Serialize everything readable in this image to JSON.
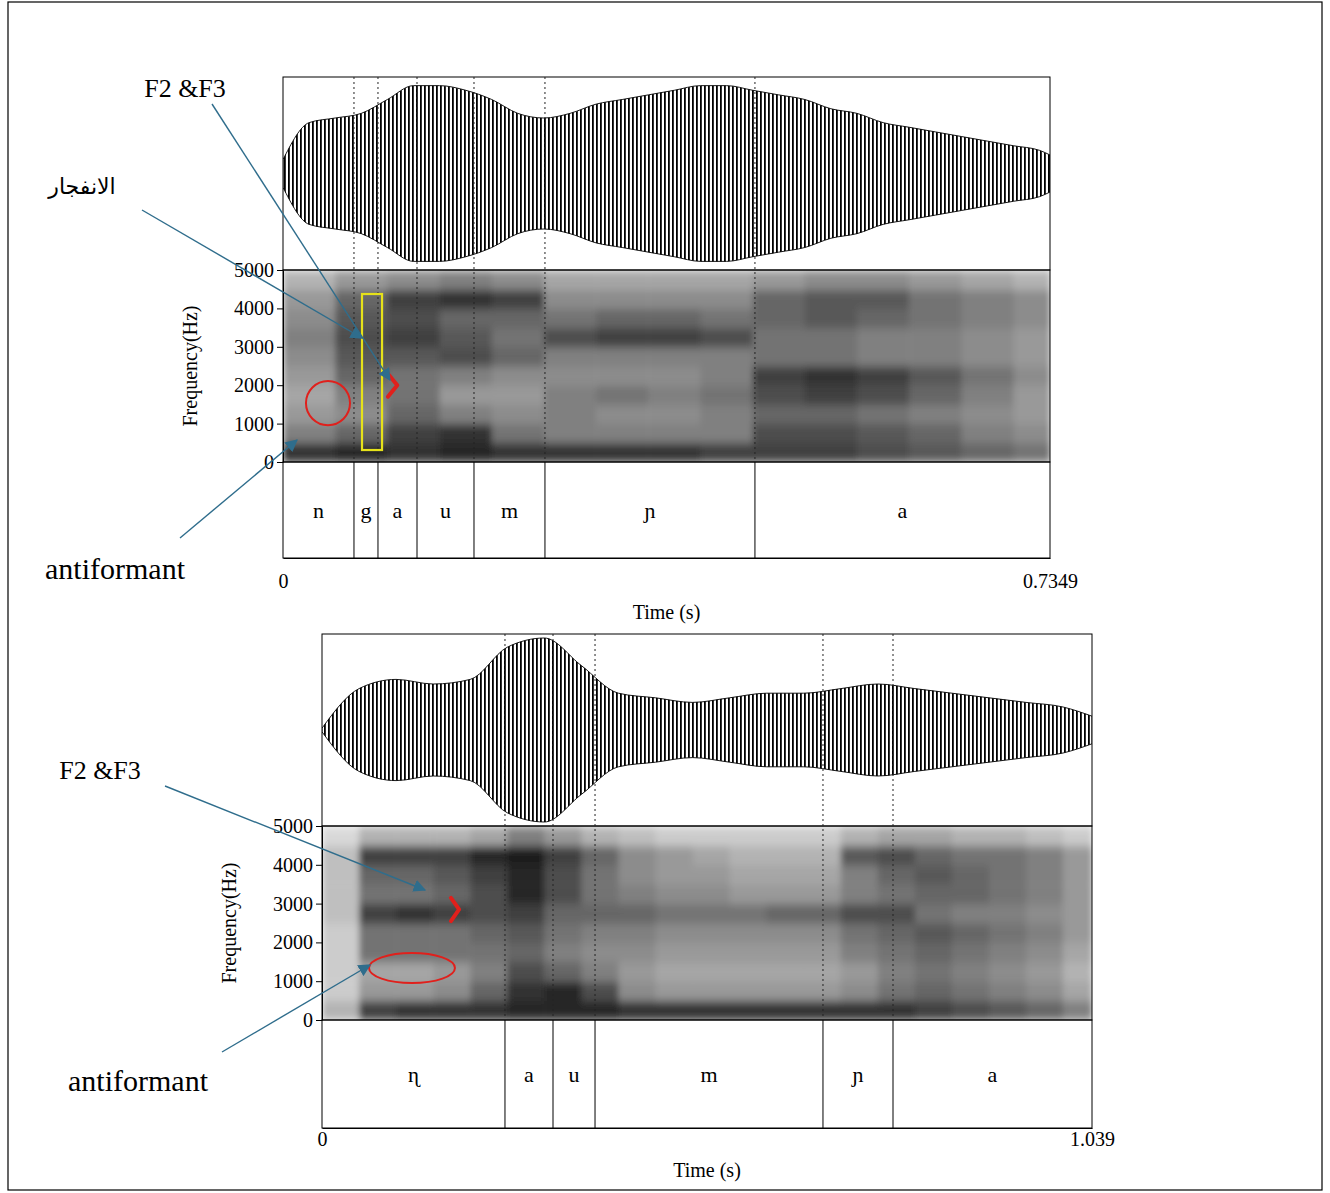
{
  "chart_data": [
    {
      "type": "spectrogram",
      "xlabel": "Time (s)",
      "ylabel": "Frequency(Hz)",
      "xlim": [
        0,
        0.7349
      ],
      "xticks": [
        0,
        0.7349
      ],
      "ylim": [
        0,
        5000
      ],
      "yticks": [
        0,
        1000,
        2000,
        3000,
        4000,
        5000
      ],
      "waveform": {
        "ylim": [
          -1,
          1
        ],
        "x": [
          0,
          0.025,
          0.05,
          0.075,
          0.1,
          0.125,
          0.15,
          0.175,
          0.2,
          0.225,
          0.25,
          0.275,
          0.3,
          0.325,
          0.35,
          0.375,
          0.4,
          0.425,
          0.45,
          0.475,
          0.5,
          0.525,
          0.55,
          0.575,
          0.6,
          0.625,
          0.65,
          0.675,
          0.7,
          0.725,
          0.7349
        ],
        "values": [
          0.15,
          0.55,
          0.6,
          0.65,
          0.8,
          0.95,
          0.95,
          0.9,
          0.8,
          0.65,
          0.6,
          0.65,
          0.75,
          0.8,
          0.85,
          0.9,
          0.95,
          0.95,
          0.9,
          0.85,
          0.8,
          0.7,
          0.65,
          0.55,
          0.5,
          0.45,
          0.4,
          0.35,
          0.3,
          0.25,
          0.2
        ]
      },
      "spectrogram": {
        "range": [
          0,
          1
        ],
        "time_edges": [
          0,
          0.05,
          0.1,
          0.15,
          0.2,
          0.25,
          0.3,
          0.35,
          0.4,
          0.45,
          0.5,
          0.55,
          0.6,
          0.65,
          0.7,
          0.7349
        ],
        "freq_edges": [
          0,
          500,
          1000,
          1500,
          2000,
          2500,
          3000,
          3500,
          4000,
          4500,
          5000
        ],
        "cells": [
          [
            0.8,
            0.85,
            0.8,
            0.85,
            0.8,
            0.8,
            0.8,
            0.8,
            0.75,
            0.75,
            0.75,
            0.7,
            0.65,
            0.6,
            0.55
          ],
          [
            0.5,
            0.6,
            0.75,
            0.8,
            0.55,
            0.5,
            0.5,
            0.5,
            0.5,
            0.7,
            0.7,
            0.65,
            0.6,
            0.5,
            0.45
          ],
          [
            0.4,
            0.45,
            0.6,
            0.5,
            0.45,
            0.5,
            0.45,
            0.45,
            0.5,
            0.6,
            0.6,
            0.55,
            0.5,
            0.45,
            0.4
          ],
          [
            0.35,
            0.5,
            0.55,
            0.4,
            0.4,
            0.5,
            0.55,
            0.5,
            0.55,
            0.7,
            0.75,
            0.7,
            0.6,
            0.5,
            0.4
          ],
          [
            0.4,
            0.6,
            0.55,
            0.5,
            0.45,
            0.45,
            0.45,
            0.45,
            0.5,
            0.75,
            0.8,
            0.75,
            0.65,
            0.55,
            0.45
          ],
          [
            0.45,
            0.65,
            0.65,
            0.7,
            0.6,
            0.5,
            0.5,
            0.5,
            0.5,
            0.55,
            0.55,
            0.5,
            0.5,
            0.45,
            0.4
          ],
          [
            0.5,
            0.7,
            0.75,
            0.65,
            0.55,
            0.7,
            0.75,
            0.75,
            0.7,
            0.55,
            0.55,
            0.5,
            0.5,
            0.45,
            0.4
          ],
          [
            0.45,
            0.65,
            0.7,
            0.6,
            0.6,
            0.55,
            0.6,
            0.6,
            0.55,
            0.6,
            0.65,
            0.6,
            0.55,
            0.5,
            0.45
          ],
          [
            0.4,
            0.6,
            0.75,
            0.8,
            0.75,
            0.45,
            0.45,
            0.45,
            0.45,
            0.6,
            0.65,
            0.65,
            0.55,
            0.5,
            0.45
          ],
          [
            0.3,
            0.4,
            0.45,
            0.5,
            0.45,
            0.35,
            0.35,
            0.35,
            0.35,
            0.4,
            0.45,
            0.45,
            0.4,
            0.35,
            0.3
          ]
        ]
      },
      "segments": {
        "boundaries": [
          0.068,
          0.091,
          0.1284,
          0.183,
          0.251,
          0.4522
        ],
        "labels": [
          "n",
          "g",
          "a",
          "u",
          "m",
          "ɲ",
          "a"
        ]
      },
      "highlights": [
        {
          "shape": "rect",
          "color": "#e6e21a",
          "time": [
            0.0757,
            0.0949
          ],
          "freq": [
            312,
            4375
          ]
        },
        {
          "shape": "ellipse",
          "color": "#e0201c",
          "time": [
            0.022,
            0.0642
          ],
          "freq": [
            960,
            2110
          ]
        },
        {
          "shape": "chevron",
          "color": "#e0201c",
          "time": [
            0.1005,
            0.1095
          ],
          "freq": [
            1700,
            2300
          ]
        }
      ],
      "annotations": [
        {
          "text": "F2 &F3",
          "time": 0.1025,
          "freq": 2135
        },
        {
          "text": "الانفجار",
          "time": 0.0757,
          "freq": 3229
        },
        {
          "text": "antiformant",
          "time": 0.0134,
          "freq": 573
        }
      ]
    },
    {
      "type": "spectrogram",
      "xlabel": "Time (s)",
      "ylabel": "Frequency(Hz)",
      "xlim": [
        0,
        1.039
      ],
      "xticks": [
        0,
        1.039
      ],
      "ylim": [
        0,
        5000
      ],
      "yticks": [
        0,
        1000,
        2000,
        3000,
        4000,
        5000
      ],
      "waveform": {
        "ylim": [
          -1,
          1
        ],
        "x": [
          0,
          0.05,
          0.1,
          0.15,
          0.2,
          0.25,
          0.3,
          0.35,
          0.4,
          0.45,
          0.5,
          0.55,
          0.6,
          0.65,
          0.7,
          0.75,
          0.8,
          0.85,
          0.9,
          0.95,
          1.0,
          1.039
        ],
        "values": [
          0.02,
          0.45,
          0.55,
          0.5,
          0.55,
          0.9,
          1.0,
          0.7,
          0.4,
          0.35,
          0.3,
          0.35,
          0.4,
          0.4,
          0.45,
          0.5,
          0.45,
          0.4,
          0.35,
          0.3,
          0.25,
          0.15
        ]
      },
      "spectrogram": {
        "range": [
          0,
          1
        ],
        "time_edges": [
          0,
          0.05,
          0.1,
          0.15,
          0.2,
          0.25,
          0.3,
          0.35,
          0.4,
          0.45,
          0.5,
          0.55,
          0.6,
          0.65,
          0.7,
          0.75,
          0.8,
          0.85,
          0.9,
          0.95,
          1.0,
          1.039
        ],
        "freq_edges": [
          0,
          500,
          1000,
          1500,
          2000,
          2500,
          3000,
          3500,
          4000,
          4500,
          5000
        ],
        "cells": [
          [
            0.3,
            0.75,
            0.8,
            0.8,
            0.8,
            0.85,
            0.85,
            0.85,
            0.8,
            0.8,
            0.8,
            0.8,
            0.8,
            0.8,
            0.8,
            0.8,
            0.75,
            0.7,
            0.65,
            0.6,
            0.5
          ],
          [
            0.2,
            0.4,
            0.4,
            0.45,
            0.6,
            0.8,
            0.85,
            0.7,
            0.45,
            0.4,
            0.4,
            0.4,
            0.4,
            0.4,
            0.45,
            0.55,
            0.6,
            0.55,
            0.5,
            0.45,
            0.35
          ],
          [
            0.2,
            0.35,
            0.35,
            0.4,
            0.5,
            0.7,
            0.6,
            0.5,
            0.4,
            0.35,
            0.35,
            0.35,
            0.35,
            0.35,
            0.4,
            0.5,
            0.55,
            0.5,
            0.45,
            0.4,
            0.3
          ],
          [
            0.2,
            0.55,
            0.55,
            0.55,
            0.55,
            0.6,
            0.5,
            0.45,
            0.45,
            0.4,
            0.4,
            0.4,
            0.4,
            0.4,
            0.5,
            0.55,
            0.6,
            0.55,
            0.5,
            0.45,
            0.35
          ],
          [
            0.2,
            0.55,
            0.55,
            0.55,
            0.6,
            0.65,
            0.55,
            0.5,
            0.5,
            0.45,
            0.45,
            0.45,
            0.45,
            0.45,
            0.55,
            0.6,
            0.65,
            0.6,
            0.55,
            0.5,
            0.4
          ],
          [
            0.25,
            0.75,
            0.8,
            0.75,
            0.7,
            0.75,
            0.6,
            0.6,
            0.6,
            0.55,
            0.55,
            0.55,
            0.6,
            0.6,
            0.7,
            0.7,
            0.55,
            0.5,
            0.5,
            0.45,
            0.4
          ],
          [
            0.25,
            0.55,
            0.55,
            0.6,
            0.7,
            0.85,
            0.7,
            0.55,
            0.5,
            0.45,
            0.45,
            0.4,
            0.4,
            0.4,
            0.5,
            0.55,
            0.6,
            0.6,
            0.55,
            0.5,
            0.4
          ],
          [
            0.25,
            0.6,
            0.6,
            0.65,
            0.75,
            0.85,
            0.7,
            0.55,
            0.45,
            0.4,
            0.4,
            0.35,
            0.35,
            0.35,
            0.5,
            0.6,
            0.65,
            0.6,
            0.55,
            0.5,
            0.4
          ],
          [
            0.25,
            0.75,
            0.75,
            0.75,
            0.85,
            0.9,
            0.75,
            0.6,
            0.45,
            0.4,
            0.35,
            0.3,
            0.3,
            0.3,
            0.65,
            0.7,
            0.6,
            0.55,
            0.55,
            0.5,
            0.4
          ],
          [
            0.15,
            0.3,
            0.3,
            0.3,
            0.35,
            0.5,
            0.4,
            0.3,
            0.25,
            0.2,
            0.2,
            0.2,
            0.2,
            0.2,
            0.3,
            0.35,
            0.35,
            0.3,
            0.3,
            0.25,
            0.2
          ]
        ]
      },
      "segments": {
        "boundaries": [
          0.2469,
          0.3117,
          0.3684,
          0.676,
          0.7705
        ],
        "labels": [
          "ɳ",
          "a",
          "u",
          "m",
          "ɲ",
          "a"
        ]
      },
      "highlights": [
        {
          "shape": "ellipse",
          "color": "#e0201c",
          "time": [
            0.0634,
            0.1794
          ],
          "freq": [
            953,
            1727
          ]
        },
        {
          "shape": "chevron",
          "color": "#e0201c",
          "time": [
            0.174,
            0.185
          ],
          "freq": [
            2550,
            3150
          ]
        }
      ],
      "annotations": [
        {
          "text": "F2 &F3",
          "time": 0.139,
          "freq": 3351
        },
        {
          "text": "antiformant",
          "time": 0.0648,
          "freq": 1418
        }
      ]
    }
  ]
}
